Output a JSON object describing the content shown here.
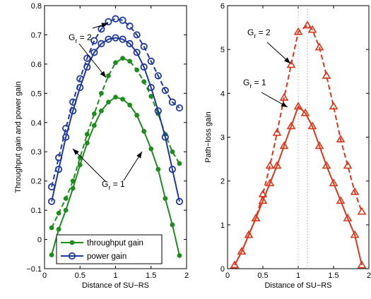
{
  "chart_data": [
    {
      "type": "line",
      "title": "",
      "xlabel": "Distance of SU−RS",
      "ylabel": "Throughput gain and power gain",
      "xlim": [
        0,
        2
      ],
      "ylim": [
        -0.1,
        0.8
      ],
      "xticks": [
        "0",
        "0.5",
        "1",
        "1.5",
        "2"
      ],
      "yticks": [
        "−0.1",
        "0",
        "0.1",
        "0.2",
        "0.3",
        "0.4",
        "0.5",
        "0.6",
        "0.7",
        "0.8"
      ],
      "x": [
        0.1,
        0.2,
        0.3,
        0.4,
        0.5,
        0.6,
        0.7,
        0.8,
        0.9,
        1.0,
        1.1,
        1.2,
        1.3,
        1.4,
        1.5,
        1.6,
        1.7,
        1.8,
        1.9
      ],
      "legend_position": "bottom-center",
      "series": [
        {
          "name": "throughput gain",
          "group": "Gr=1",
          "color": "#1e8c1e",
          "style": "solid",
          "marker": "dot",
          "values": [
            -0.053,
            0.035,
            0.1,
            0.175,
            0.255,
            0.33,
            0.39,
            0.44,
            0.47,
            0.487,
            0.48,
            0.46,
            0.425,
            0.37,
            0.31,
            0.24,
            0.14,
            0.05,
            -0.055
          ]
        },
        {
          "name": "throughput gain",
          "group": "Gr=2",
          "color": "#1e8c1e",
          "style": "dashed",
          "marker": "dot",
          "values": [
            0.04,
            0.09,
            0.14,
            0.2,
            0.28,
            0.36,
            0.43,
            0.5,
            0.56,
            0.605,
            0.62,
            0.61,
            0.58,
            0.54,
            0.49,
            0.43,
            0.36,
            0.3,
            0.26
          ]
        },
        {
          "name": "power gain",
          "group": "Gr=1",
          "color": "#1f3a9e",
          "style": "solid",
          "marker": "circle",
          "values": [
            0.13,
            0.24,
            0.35,
            0.44,
            0.52,
            0.59,
            0.64,
            0.67,
            0.685,
            0.69,
            0.685,
            0.67,
            0.64,
            0.59,
            0.52,
            0.44,
            0.35,
            0.24,
            0.13
          ]
        },
        {
          "name": "power gain",
          "group": "Gr=2",
          "color": "#1f3a9e",
          "style": "dashed",
          "marker": "circle",
          "values": [
            0.18,
            0.28,
            0.38,
            0.47,
            0.55,
            0.62,
            0.68,
            0.72,
            0.745,
            0.755,
            0.75,
            0.73,
            0.7,
            0.66,
            0.61,
            0.56,
            0.51,
            0.47,
            0.45
          ]
        }
      ],
      "legend": [
        "throughput gain",
        "power gain"
      ],
      "annotations": [
        {
          "base": "G",
          "sub": "r",
          "rest": " = 2"
        },
        {
          "base": "G",
          "sub": "r",
          "rest": " = 1"
        }
      ]
    },
    {
      "type": "line",
      "title": "",
      "xlabel": "Distance of SU−RS",
      "ylabel": "Path−loss gain",
      "xlim": [
        0,
        2
      ],
      "ylim": [
        0,
        6
      ],
      "xticks": [
        "0",
        "0.5",
        "1",
        "1.5",
        "2"
      ],
      "yticks": [
        "0",
        "1",
        "2",
        "3",
        "4",
        "5",
        "6"
      ],
      "vlines": [
        1.0,
        1.13
      ],
      "series": [
        {
          "name": "",
          "group": "Gr=1",
          "color": "#d9391c",
          "style": "solid",
          "marker": "triangle",
          "x": [
            0.1,
            0.2,
            0.3,
            0.4,
            0.5,
            0.6,
            0.7,
            0.8,
            0.9,
            1.0,
            1.1,
            1.2,
            1.3,
            1.4,
            1.5,
            1.6,
            1.7,
            1.8,
            1.9
          ],
          "values": [
            0.08,
            0.39,
            0.77,
            1.15,
            1.55,
            1.95,
            2.35,
            2.8,
            3.25,
            3.7,
            3.55,
            3.25,
            2.8,
            2.35,
            1.95,
            1.55,
            1.15,
            0.77,
            0.08
          ]
        },
        {
          "name": "",
          "group": "Gr=2",
          "color": "#d9391c",
          "style": "dashed",
          "marker": "triangle",
          "x": [
            0.1,
            0.2,
            0.3,
            0.4,
            0.5,
            0.6,
            0.7,
            0.8,
            0.9,
            1.0,
            1.13,
            1.2,
            1.3,
            1.4,
            1.5,
            1.6,
            1.7,
            1.8,
            1.9
          ],
          "values": [
            0.08,
            0.39,
            0.77,
            1.15,
            1.7,
            2.35,
            3.1,
            3.9,
            4.65,
            5.4,
            5.55,
            5.45,
            5.05,
            4.4,
            3.7,
            2.95,
            2.35,
            1.75,
            1.3
          ]
        }
      ],
      "annotations": [
        {
          "base": "G",
          "sub": "r",
          "rest": " = 2"
        },
        {
          "base": "G",
          "sub": "r",
          "rest": " = 1"
        }
      ]
    }
  ]
}
